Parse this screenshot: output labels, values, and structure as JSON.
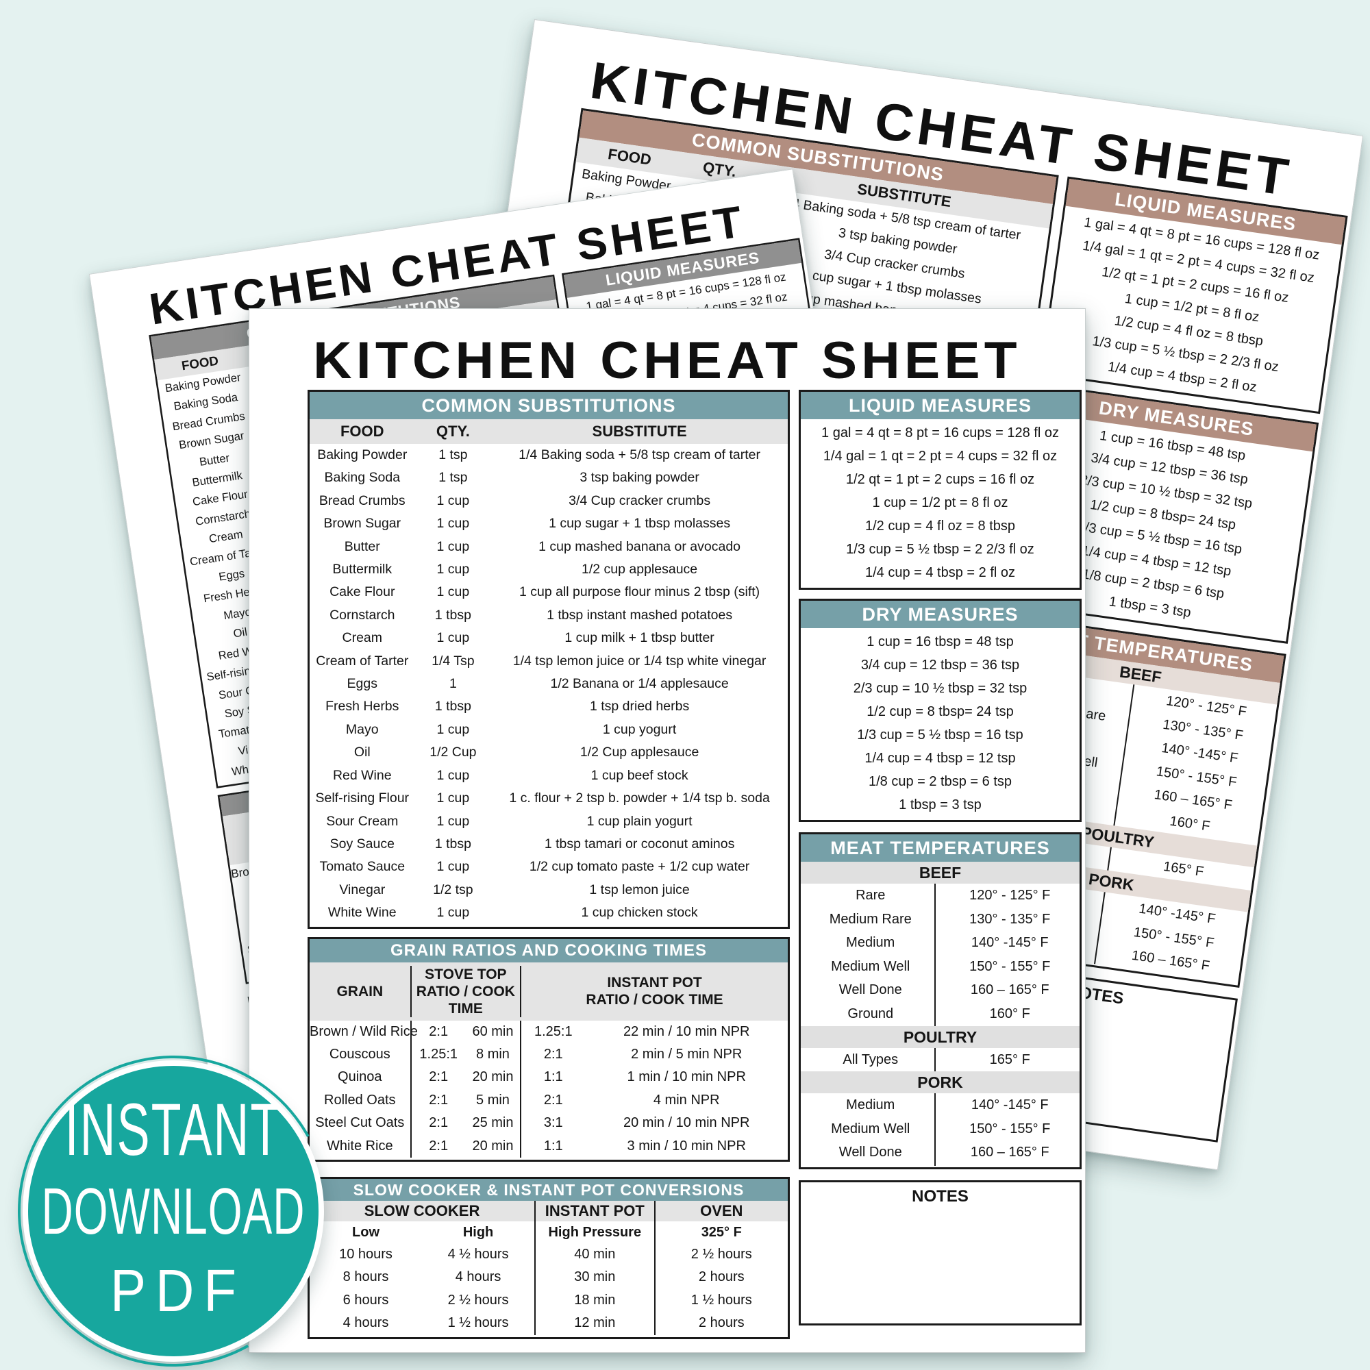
{
  "colors": {
    "background": "#e4f2f0",
    "accent_teal": "#76a0a8",
    "accent_gray": "#909090",
    "accent_tan": "#b28e80",
    "badge_teal": "#17a79e",
    "band_text": "#ffffff"
  },
  "badge": {
    "line1": "INSTANT",
    "line2": "DOWNLOAD",
    "line3": "PDF"
  },
  "sheet": {
    "title": "KITCHEN CHEAT SHEET",
    "substitutions": {
      "title": "COMMON SUBSTITUTIONS",
      "headers": [
        "FOOD",
        "QTY.",
        "SUBSTITUTE"
      ],
      "rows": [
        [
          "Baking Powder",
          "1 tsp",
          "1/4 Baking soda + 5/8 tsp cream of tarter"
        ],
        [
          "Baking Soda",
          "1 tsp",
          "3 tsp baking powder"
        ],
        [
          "Bread Crumbs",
          "1 cup",
          "3/4 Cup cracker crumbs"
        ],
        [
          "Brown Sugar",
          "1 cup",
          "1 cup sugar + 1 tbsp molasses"
        ],
        [
          "Butter",
          "1 cup",
          "1 cup mashed banana or avocado"
        ],
        [
          "Buttermilk",
          "1 cup",
          "1/2 cup applesauce"
        ],
        [
          "Cake Flour",
          "1 cup",
          "1 cup all purpose flour minus 2 tbsp (sift)"
        ],
        [
          "Cornstarch",
          "1 tbsp",
          "1 tbsp instant mashed potatoes"
        ],
        [
          "Cream",
          "1 cup",
          "1 cup milk + 1 tbsp butter"
        ],
        [
          "Cream of Tarter",
          "1/4 Tsp",
          "1/4 tsp lemon juice or 1/4 tsp white vinegar"
        ],
        [
          "Eggs",
          "1",
          "1/2 Banana or 1/4 applesauce"
        ],
        [
          "Fresh Herbs",
          "1 tbsp",
          "1 tsp dried herbs"
        ],
        [
          "Mayo",
          "1 cup",
          "1 cup yogurt"
        ],
        [
          "Oil",
          "1/2 Cup",
          "1/2 Cup applesauce"
        ],
        [
          "Red Wine",
          "1 cup",
          "1 cup beef stock"
        ],
        [
          "Self-rising Flour",
          "1 cup",
          "1 c. flour + 2 tsp b. powder + 1/4 tsp b. soda"
        ],
        [
          "Sour Cream",
          "1 cup",
          "1 cup plain yogurt"
        ],
        [
          "Soy Sauce",
          "1 tbsp",
          "1 tbsp tamari or coconut aminos"
        ],
        [
          "Tomato Sauce",
          "1 cup",
          "1/2 cup tomato paste + 1/2 cup water"
        ],
        [
          "Vinegar",
          "1/2 tsp",
          "1 tsp lemon juice"
        ],
        [
          "White Wine",
          "1 cup",
          "1 cup chicken stock"
        ]
      ]
    },
    "grains": {
      "title": "GRAIN RATIOS AND COOKING TIMES",
      "col1": "GRAIN",
      "col2_line1": "STOVE TOP",
      "col2_line2": "RATIO / COOK TIME",
      "col3_line1": "INSTANT POT",
      "col3_line2": "RATIO / COOK TIME",
      "rows": [
        [
          "Brown / Wild Rice",
          "2:1",
          "60 min",
          "1.25:1",
          "22 min / 10 min NPR"
        ],
        [
          "Couscous",
          "1.25:1",
          "8 min",
          "2:1",
          "2 min / 5 min NPR"
        ],
        [
          "Quinoa",
          "2:1",
          "20 min",
          "1:1",
          "1 min / 10 min NPR"
        ],
        [
          "Rolled Oats",
          "2:1",
          "5 min",
          "2:1",
          "4 min NPR"
        ],
        [
          "Steel Cut Oats",
          "2:1",
          "25 min",
          "3:1",
          "20 min / 10 min NPR"
        ],
        [
          "White Rice",
          "2:1",
          "20 min",
          "1:1",
          "3 min / 10 min NPR"
        ]
      ]
    },
    "slow_cooker": {
      "title": "SLOW COOKER & INSTANT POT CONVERSIONS",
      "group_headers": [
        "SLOW COOKER",
        "INSTANT POT",
        "OVEN"
      ],
      "sub_headers": [
        "Low",
        "High",
        "High Pressure",
        "325° F"
      ],
      "rows": [
        [
          "10 hours",
          "4 ½ hours",
          "40 min",
          "2 ½ hours"
        ],
        [
          "8 hours",
          "4 hours",
          "30 min",
          "2 hours"
        ],
        [
          "6 hours",
          "2 ½ hours",
          "18 min",
          "1 ½ hours"
        ],
        [
          "4 hours",
          "1 ½ hours",
          "12 min",
          "2 hours"
        ]
      ]
    },
    "liquid": {
      "title": "LIQUID MEASURES",
      "rows": [
        "1 gal = 4 qt = 8 pt = 16 cups = 128 fl oz",
        "1/4 gal = 1 qt = 2 pt = 4 cups = 32 fl oz",
        "1/2 qt = 1 pt = 2 cups = 16 fl oz",
        "1 cup = 1/2 pt = 8 fl oz",
        "1/2 cup = 4 fl oz = 8 tbsp",
        "1/3 cup = 5 ½ tbsp = 2 2/3 fl oz",
        "1/4 cup = 4 tbsp = 2 fl oz"
      ]
    },
    "dry": {
      "title": "DRY MEASURES",
      "rows": [
        "1 cup = 16 tbsp = 48 tsp",
        "3/4 cup = 12 tbsp = 36 tsp",
        "2/3 cup = 10 ½  tbsp = 32 tsp",
        "1/2 cup = 8 tbsp= 24 tsp",
        "1/3 cup = 5 ½ tbsp = 16 tsp",
        "1/4 cup = 4 tbsp = 12 tsp",
        "1/8 cup = 2 tbsp = 6 tsp",
        "1 tbsp = 3 tsp"
      ]
    },
    "meat": {
      "title": "MEAT TEMPERATURES",
      "sections": [
        {
          "name": "BEEF",
          "rows": [
            [
              "Rare",
              "120° - 125° F"
            ],
            [
              "Medium Rare",
              "130° - 135° F"
            ],
            [
              "Medium",
              "140° -145° F"
            ],
            [
              "Medium Well",
              "150° - 155° F"
            ],
            [
              "Well Done",
              "160 – 165° F"
            ],
            [
              "Ground",
              "160° F"
            ]
          ]
        },
        {
          "name": "POULTRY",
          "rows": [
            [
              "All Types",
              "165° F"
            ]
          ]
        },
        {
          "name": "PORK",
          "rows": [
            [
              "Medium",
              "140° -145° F"
            ],
            [
              "Medium Well",
              "150° - 155° F"
            ],
            [
              "Well Done",
              "160 – 165° F"
            ]
          ]
        }
      ]
    },
    "notes_label": "NOTES"
  }
}
